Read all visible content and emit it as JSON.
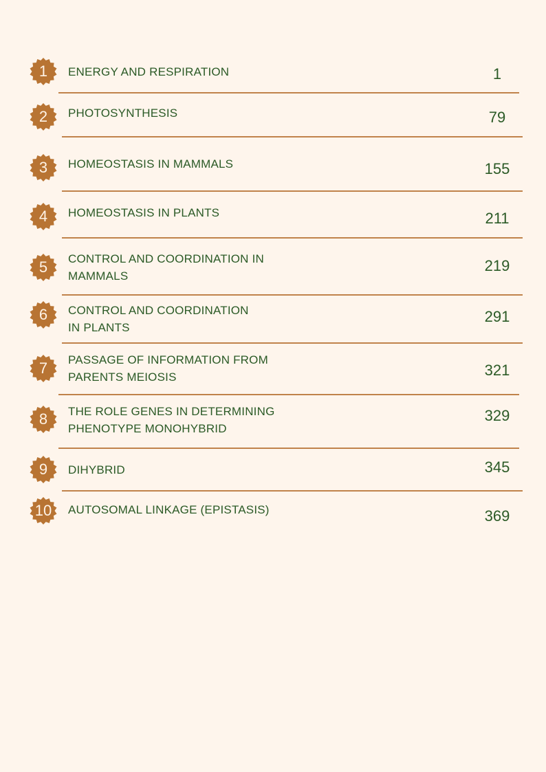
{
  "colors": {
    "background": "#fef5ec",
    "accent": "#b87433",
    "text": "#2b5a26"
  },
  "badge_icon": "starburst-badge",
  "toc": [
    {
      "number": "1",
      "title": "ENERGY AND RESPIRATION",
      "page": "1"
    },
    {
      "number": "2",
      "title": "PHOTOSYNTHESIS",
      "page": "79"
    },
    {
      "number": "3",
      "title": "HOMEOSTASIS IN MAMMALS",
      "page": "155"
    },
    {
      "number": "4",
      "title": "HOMEOSTASIS IN PLANTS",
      "page": "211"
    },
    {
      "number": "5",
      "title": "CONTROL AND COORDINATION IN\nMAMMALS",
      "page": "219"
    },
    {
      "number": "6",
      "title": "CONTROL AND COORDINATION\nIN PLANTS",
      "page": "291"
    },
    {
      "number": "7",
      "title": "PASSAGE OF INFORMATION FROM\nPARENTS MEIOSIS",
      "page": "321"
    },
    {
      "number": "8",
      "title": "THE ROLE GENES IN DETERMINING\nPHENOTYPE MONOHYBRID",
      "page": "329"
    },
    {
      "number": "9",
      "title": "DIHYBRID",
      "page": "345"
    },
    {
      "number": "10",
      "title": "AUTOSOMAL LINKAGE (EPISTASIS)",
      "page": "369"
    }
  ]
}
